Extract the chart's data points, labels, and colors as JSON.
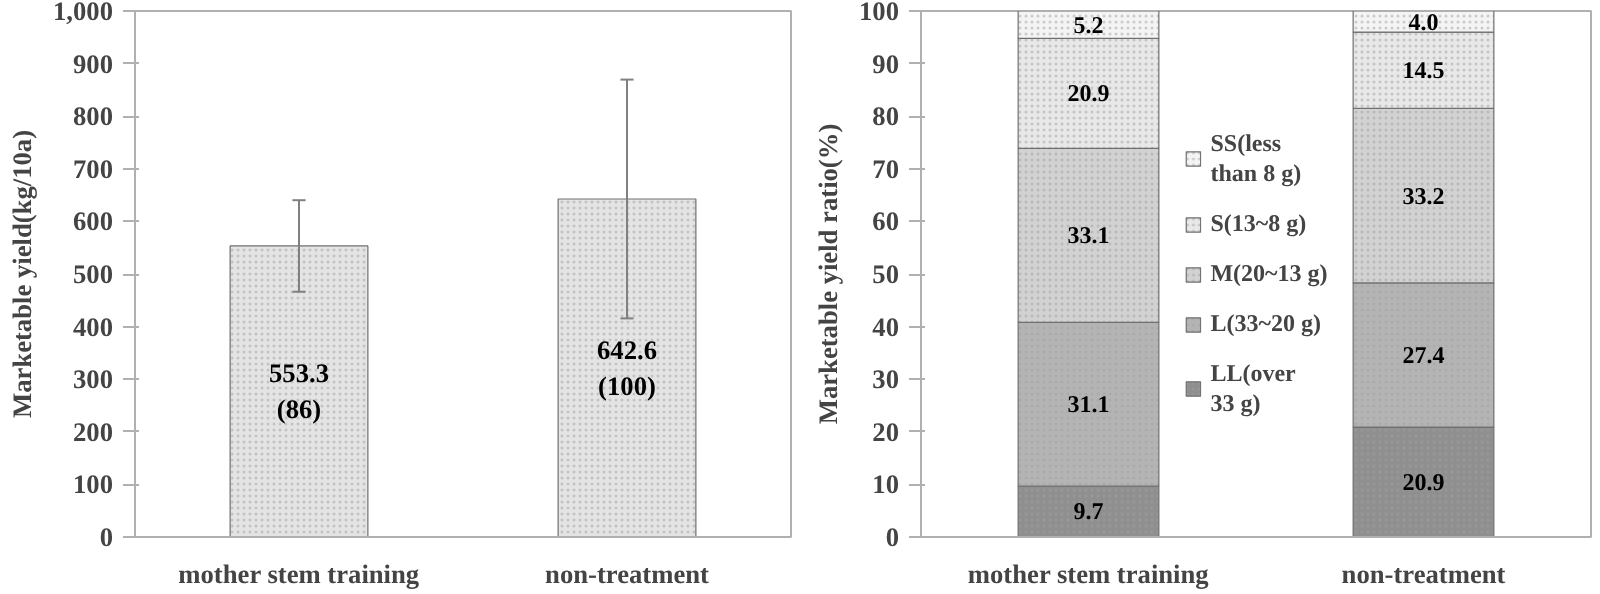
{
  "chart_data": [
    {
      "type": "bar",
      "ylabel": "Marketable yield(kg/10a)",
      "categories": [
        "mother stem training",
        "non-treatment"
      ],
      "values": [
        553.3,
        642.6
      ],
      "errors": [
        87,
        227
      ],
      "value_labels": [
        "553.3\n(86)",
        "642.6\n(100)"
      ],
      "color": "#e4e4e4",
      "ylim": [
        0,
        1000
      ],
      "yticks": [
        0,
        100,
        200,
        300,
        400,
        500,
        600,
        700,
        800,
        900,
        {
          "value": 1000,
          "label": "1,000"
        }
      ],
      "grid": false
    },
    {
      "type": "bar",
      "stacked": true,
      "ylabel": "Marketable yield ratio(%)",
      "categories": [
        "mother stem training",
        "non-treatment"
      ],
      "series": [
        {
          "name": "LL(over 33 g)",
          "color": "#8f8f8f",
          "values": [
            9.7,
            20.9
          ],
          "value_labels": [
            "9.7",
            "20.9"
          ]
        },
        {
          "name": "L(33~20 g)",
          "color": "#b4b4b4",
          "values": [
            31.1,
            27.4
          ],
          "value_labels": [
            "31.1",
            "27.4"
          ]
        },
        {
          "name": "M(20~13 g)",
          "color": "#d2d2d2",
          "values": [
            33.1,
            33.2
          ],
          "value_labels": [
            "33.1",
            "33.2"
          ]
        },
        {
          "name": "S(13~8 g)",
          "color": "#e8e8e8",
          "values": [
            20.9,
            14.5
          ],
          "value_labels": [
            "20.9",
            "14.5"
          ]
        },
        {
          "name": "SS(less than 8 g)",
          "color": "#f4f4f4",
          "values": [
            5.2,
            4.0
          ],
          "value_labels": [
            "5.2",
            "4.0"
          ]
        }
      ],
      "ylim": [
        0,
        100
      ],
      "yticks": [
        0,
        10,
        20,
        30,
        40,
        50,
        60,
        70,
        80,
        90,
        100
      ],
      "grid": false,
      "legend": "center"
    }
  ]
}
